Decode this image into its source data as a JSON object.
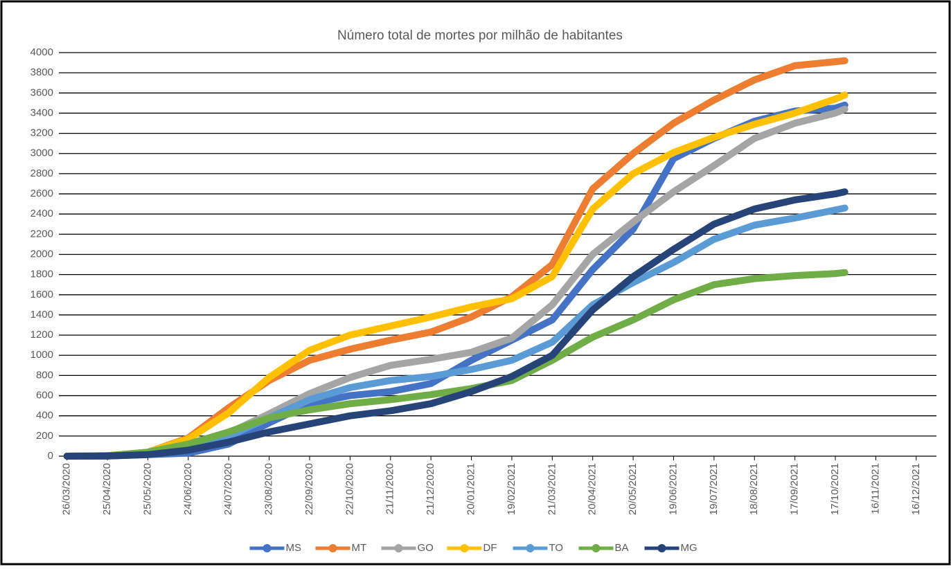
{
  "chart_data": {
    "type": "line",
    "title": "Número total de mortes por milhão de habitantes",
    "x": [
      "26/03/2020",
      "25/04/2020",
      "25/05/2020",
      "24/06/2020",
      "24/07/2020",
      "23/08/2020",
      "22/09/2020",
      "22/10/2020",
      "21/11/2020",
      "21/12/2020",
      "20/01/2021",
      "19/02/2021",
      "21/03/2021",
      "20/04/2021",
      "20/05/2021",
      "19/06/2021",
      "19/07/2021",
      "18/08/2021",
      "17/09/2021",
      "17/10/2021",
      "24/10/2021"
    ],
    "series": [
      {
        "name": "MS",
        "color": "#4472c4",
        "values": [
          0,
          2,
          15,
          30,
          120,
          330,
          520,
          600,
          640,
          720,
          950,
          1150,
          1350,
          1850,
          2250,
          2950,
          3150,
          3320,
          3420,
          3450,
          3480
        ]
      },
      {
        "name": "MT",
        "color": "#ed7d31",
        "values": [
          0,
          5,
          40,
          180,
          480,
          750,
          950,
          1060,
          1150,
          1230,
          1380,
          1580,
          1900,
          2650,
          3000,
          3300,
          3530,
          3730,
          3870,
          3910,
          3920
        ]
      },
      {
        "name": "GO",
        "color": "#a5a5a5",
        "values": [
          0,
          5,
          30,
          110,
          230,
          420,
          620,
          780,
          900,
          960,
          1030,
          1170,
          1500,
          2000,
          2320,
          2620,
          2880,
          3150,
          3300,
          3400,
          3440
        ]
      },
      {
        "name": "DF",
        "color": "#ffc000",
        "values": [
          0,
          3,
          40,
          170,
          430,
          780,
          1050,
          1200,
          1290,
          1380,
          1480,
          1560,
          1780,
          2450,
          2800,
          3010,
          3160,
          3290,
          3400,
          3540,
          3580
        ]
      },
      {
        "name": "TO",
        "color": "#5b9bd5",
        "values": [
          0,
          2,
          20,
          80,
          200,
          380,
          560,
          680,
          750,
          790,
          860,
          950,
          1130,
          1500,
          1720,
          1920,
          2150,
          2290,
          2360,
          2440,
          2460
        ]
      },
      {
        "name": "BA",
        "color": "#70ad47",
        "values": [
          0,
          5,
          40,
          120,
          240,
          380,
          460,
          520,
          560,
          610,
          670,
          750,
          950,
          1180,
          1350,
          1550,
          1700,
          1760,
          1790,
          1810,
          1820
        ]
      },
      {
        "name": "MG",
        "color": "#264478",
        "values": [
          0,
          2,
          15,
          60,
          140,
          240,
          320,
          400,
          450,
          520,
          640,
          790,
          1000,
          1450,
          1780,
          2050,
          2300,
          2450,
          2540,
          2600,
          2620
        ]
      }
    ],
    "xlim": [
      "20/03/2020",
      "31/12/2021"
    ],
    "xticks": [
      "26/03/2020",
      "25/04/2020",
      "25/05/2020",
      "24/06/2020",
      "24/07/2020",
      "23/08/2020",
      "22/09/2020",
      "22/10/2020",
      "21/11/2020",
      "21/12/2020",
      "20/01/2021",
      "19/02/2021",
      "21/03/2021",
      "20/04/2021",
      "20/05/2021",
      "19/06/2021",
      "19/07/2021",
      "18/08/2021",
      "17/09/2021",
      "17/10/2021",
      "16/11/2021",
      "16/12/2021"
    ],
    "ylim": [
      0,
      4000
    ],
    "yticks": [
      0,
      200,
      400,
      600,
      800,
      1000,
      1200,
      1400,
      1600,
      1800,
      2000,
      2200,
      2400,
      2600,
      2800,
      3000,
      3200,
      3400,
      3600,
      3800,
      4000
    ],
    "grid": true,
    "legend": "bottom"
  }
}
